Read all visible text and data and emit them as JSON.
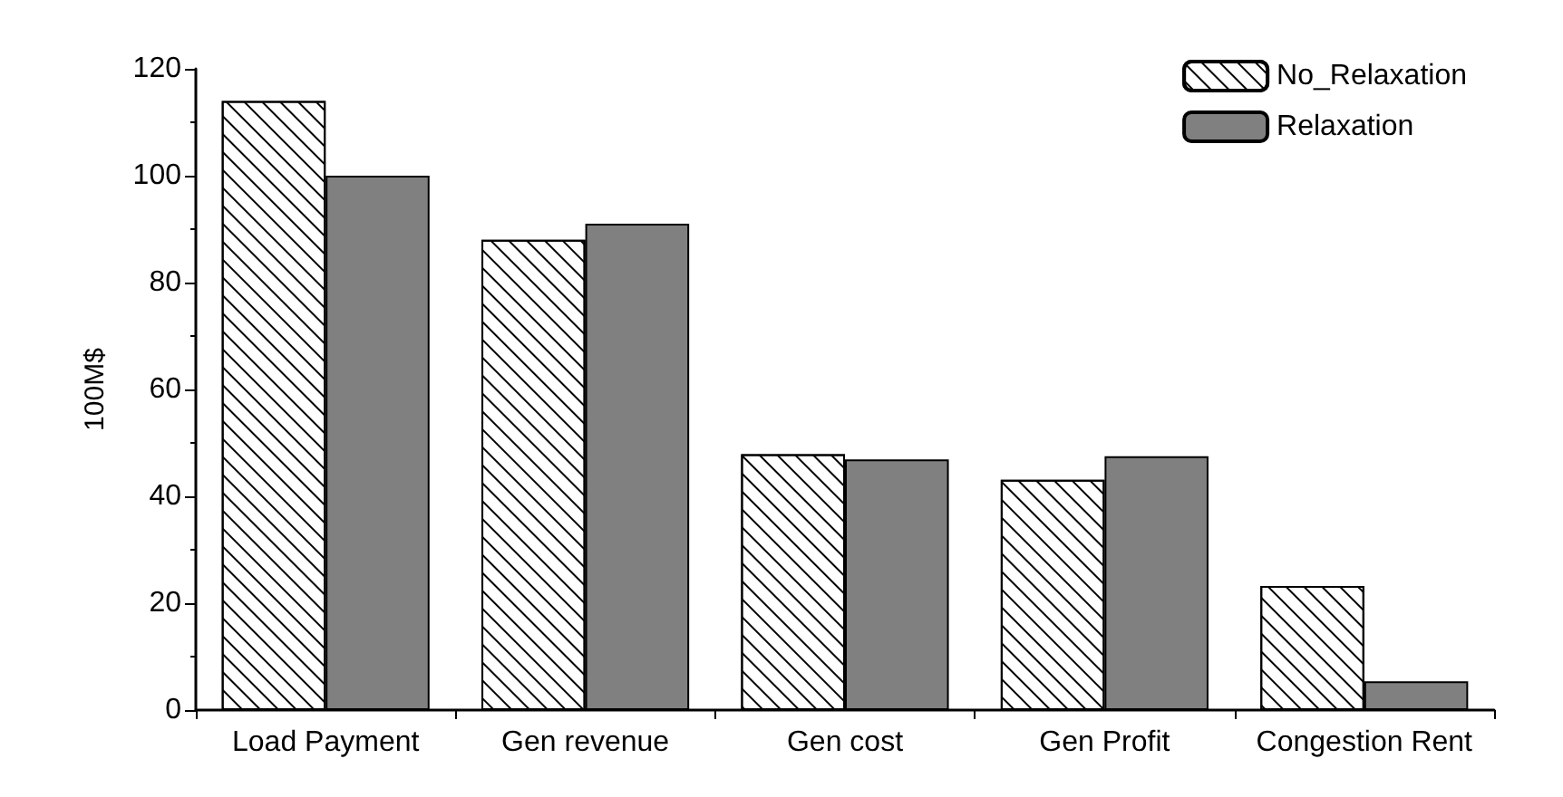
{
  "chart_data": {
    "type": "bar",
    "ylabel": "100M$",
    "categories": [
      "Load Payment",
      "Gen revenue",
      "Gen cost",
      "Gen Profit",
      "Congestion Rent"
    ],
    "series": [
      {
        "name": "No_Relaxation",
        "color": "#ffffff",
        "values": [
          114,
          88,
          47.9,
          43.1,
          23.2
        ]
      },
      {
        "name": "Relaxation",
        "color": "#808080",
        "values": [
          100,
          91,
          46.9,
          47.5,
          5.4
        ]
      }
    ],
    "ylim": [
      0,
      120
    ],
    "yticks": [
      0,
      20,
      40,
      60,
      80,
      100,
      120
    ],
    "grid": false,
    "legend": "top right"
  }
}
